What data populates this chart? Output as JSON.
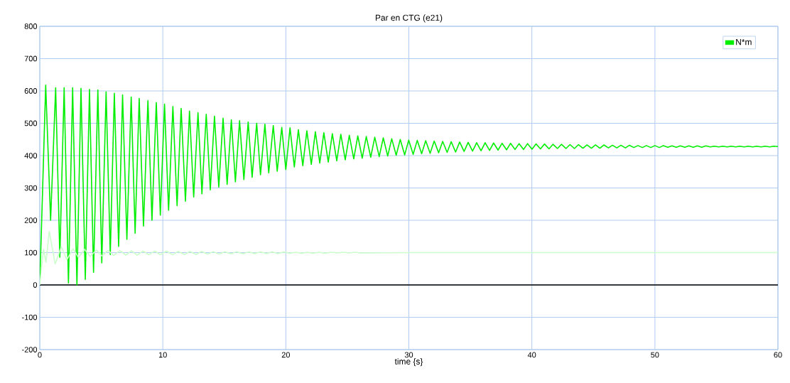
{
  "chart_data": {
    "type": "line",
    "title": "Par en CTG (e21)",
    "xlabel": "time {s}",
    "xlim": [
      0,
      60
    ],
    "xticks": [
      0,
      10,
      20,
      30,
      40,
      50,
      60
    ],
    "ylim": [
      -200,
      800
    ],
    "yticks": [
      -200,
      -100,
      0,
      100,
      200,
      300,
      400,
      500,
      600,
      700,
      800
    ],
    "grid": true,
    "legend": "top right",
    "marker": "none",
    "line_style": "solid",
    "ref_lines": [
      {
        "axis": "y",
        "value": 0,
        "color": "#000000"
      }
    ],
    "series": [
      {
        "name": "N*m",
        "color": "#00ee00",
        "x": [
          0,
          0.48,
          0.88,
          1.29,
          1.63,
          1.98,
          2.33,
          2.67,
          3.02,
          3.35,
          3.7,
          4.04,
          4.37,
          4.72,
          5.04,
          5.39,
          5.73,
          6.06,
          6.41,
          6.73,
          7.08,
          7.43,
          7.75,
          8.08,
          8.43,
          8.79,
          9.12,
          9.47,
          9.8,
          10.14,
          10.47,
          10.82,
          11.16,
          11.49,
          11.84,
          12.17,
          12.51,
          12.86,
          13.18,
          13.53,
          13.86,
          14.2,
          14.55,
          14.9,
          15.23,
          15.57,
          15.9,
          16.24,
          16.59,
          16.94,
          17.26,
          17.63,
          17.94,
          18.3,
          18.61,
          18.98,
          19.3,
          19.67,
          20.0,
          20.34,
          20.69,
          21.02,
          21.38,
          21.71,
          22.07,
          22.4,
          22.76,
          23.09,
          23.45,
          23.78,
          24.14,
          24.47,
          24.83,
          25.16,
          25.52,
          25.85,
          26.21,
          26.54,
          26.9,
          27.23,
          27.59,
          27.92,
          28.28,
          28.61,
          28.97,
          29.3,
          29.66,
          29.99,
          30.35,
          30.68,
          31.04,
          31.37,
          31.73,
          32.06,
          32.42,
          32.75,
          33.11,
          33.44,
          33.8,
          34.13,
          34.49,
          34.82,
          35.18,
          35.51,
          35.87,
          36.2,
          36.56,
          36.89,
          37.25,
          37.58,
          37.94,
          38.27,
          38.63,
          38.96,
          39.32,
          39.65,
          40.01,
          40.34,
          40.7,
          41.03,
          41.39,
          41.72,
          42.08,
          42.41,
          42.77,
          43.1,
          43.46,
          43.79,
          44.15,
          44.48,
          44.84,
          45.17,
          45.53,
          45.86,
          46.22,
          46.55,
          46.91,
          47.24,
          47.6,
          47.93,
          48.29,
          48.62,
          48.98,
          49.31,
          49.67,
          50.0,
          50.36,
          50.69,
          51.05,
          51.38,
          51.74,
          52.07,
          52.43,
          52.76,
          53.12,
          53.45,
          53.81,
          54.14,
          54.5,
          54.83,
          55.19,
          55.52,
          55.88,
          56.21,
          56.57,
          56.9,
          57.26,
          57.59,
          57.95,
          58.28,
          58.64,
          58.97,
          59.33,
          59.66,
          60
        ],
        "values": [
          0,
          618,
          200,
          610,
          86,
          610,
          6,
          610,
          0,
          608,
          17,
          605,
          39,
          603,
          68,
          597,
          94,
          593,
          119,
          588,
          141,
          581,
          160,
          577,
          182,
          570,
          200,
          564,
          216,
          559,
          231,
          552,
          245,
          546,
          259,
          538,
          272,
          533,
          282,
          528,
          294,
          522,
          303,
          516,
          311,
          511,
          319,
          508,
          326,
          504,
          333,
          500,
          341,
          497,
          347,
          493,
          352,
          487,
          357,
          486,
          365,
          480,
          369,
          477,
          373,
          474,
          377,
          471,
          380,
          468,
          384,
          466,
          387,
          463,
          390,
          461,
          392,
          459,
          395,
          457,
          397,
          455,
          399,
          452,
          401,
          450,
          402,
          448,
          404,
          447,
          406,
          446,
          407,
          445,
          409,
          444,
          410,
          443,
          411,
          442,
          413,
          441,
          414,
          440,
          415,
          440,
          416,
          439,
          417,
          438,
          418,
          438,
          419,
          437,
          419,
          437,
          420,
          436,
          421,
          436,
          421,
          435,
          422,
          435,
          422,
          434,
          422,
          434,
          423,
          433,
          423,
          433,
          423,
          433,
          424,
          432,
          424,
          432,
          424,
          432,
          425,
          431,
          425,
          431,
          425,
          431,
          425,
          431,
          426,
          430,
          426,
          430,
          426,
          430,
          426,
          430,
          426,
          430,
          427,
          429,
          427,
          429,
          427,
          429,
          427,
          429,
          427,
          429,
          427,
          429,
          427,
          429,
          427,
          429,
          428
        ]
      },
      {
        "color": "#ccffcc",
        "x": [
          0,
          0.3,
          0.5,
          0.77,
          1.25,
          1.75,
          2.2,
          2.7,
          3.15,
          3.65,
          4.1,
          4.6,
          5.05,
          5.55,
          6.0,
          6.5,
          7.0,
          7.45,
          7.9,
          8.4,
          8.85,
          9.35,
          9.8,
          10.3,
          10.8,
          11.25,
          11.75,
          12.2,
          12.7,
          13.15,
          13.65,
          14.1,
          14.6,
          15.05,
          15.55,
          16.0,
          16.5,
          17.0,
          17.45,
          17.95,
          18.4,
          18.9,
          19.35,
          19.85,
          20.3,
          20.8,
          21.3,
          21.75,
          22.2,
          22.7,
          23.2,
          23.65,
          24.15,
          24.6,
          25.1,
          25.6,
          26.05,
          30,
          60
        ],
        "values": [
          0,
          110,
          70,
          165,
          65,
          118,
          78,
          112,
          85,
          110,
          88,
          108,
          90,
          107,
          91,
          106,
          92,
          106,
          92,
          105,
          93,
          105,
          93,
          105,
          93,
          104,
          94,
          104,
          94,
          104,
          95,
          103,
          95,
          103,
          96,
          103,
          96,
          102,
          97,
          102,
          97,
          102,
          97,
          102,
          98,
          101,
          98,
          101,
          98,
          101,
          98,
          101,
          99,
          101,
          99,
          101,
          99,
          100,
          100
        ]
      }
    ]
  }
}
